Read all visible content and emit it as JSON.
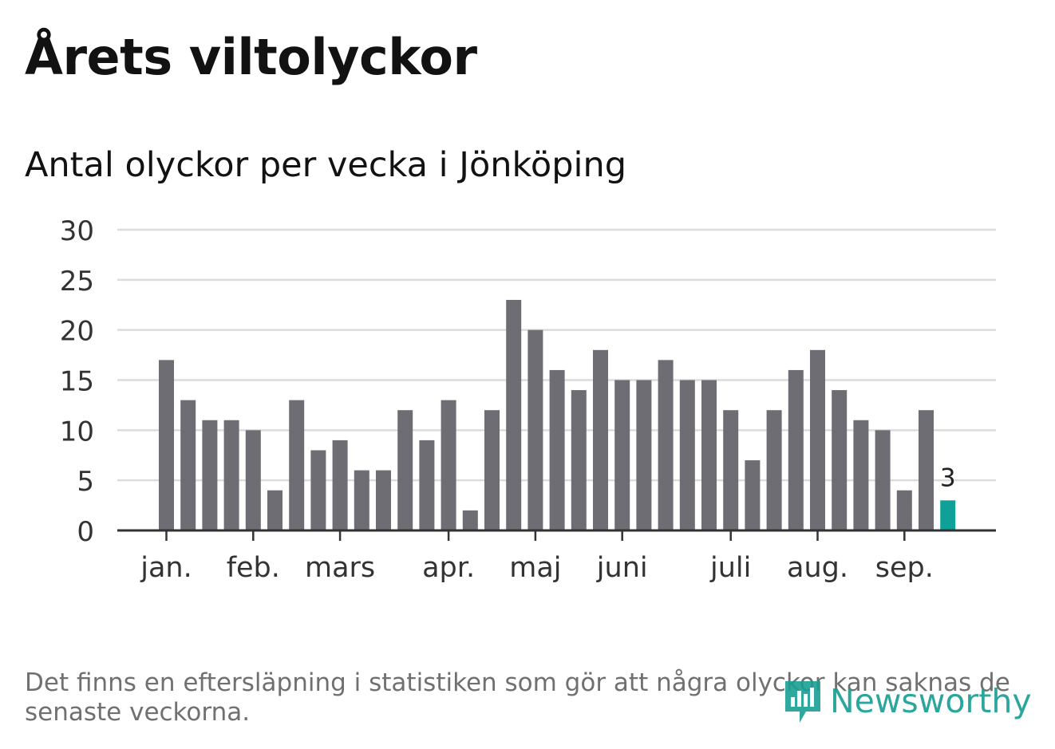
{
  "header": {
    "title": "Årets viltolyckor",
    "subtitle": "Antal olyckor per vecka i Jönköping"
  },
  "footer": {
    "note": "Det finns en eftersläpning i statistiken som gör att några olyckor kan saknas de senaste veckorna.",
    "logo_text": "Newsworthy"
  },
  "colors": {
    "bar": "#6e6d73",
    "highlight": "#0fa197",
    "grid": "#dcdcdc",
    "axis": "#333333",
    "text": "#333333"
  },
  "chart_data": {
    "type": "bar",
    "values": [
      17,
      13,
      11,
      11,
      10,
      4,
      13,
      8,
      9,
      6,
      6,
      12,
      9,
      13,
      2,
      12,
      23,
      20,
      16,
      14,
      18,
      15,
      15,
      17,
      15,
      15,
      12,
      7,
      12,
      16,
      18,
      14,
      11,
      10,
      4,
      12,
      3
    ],
    "ylim": [
      0,
      30
    ],
    "yticks": [
      "0",
      "5",
      "10",
      "15",
      "20",
      "25",
      "30"
    ],
    "month_labels": [
      {
        "label": "jan.",
        "x": 0.5
      },
      {
        "label": "feb.",
        "x": 4.5
      },
      {
        "label": "mars",
        "x": 8.5
      },
      {
        "label": "apr.",
        "x": 13.5
      },
      {
        "label": "maj",
        "x": 17.5
      },
      {
        "label": "juni",
        "x": 21.5
      },
      {
        "label": "juli",
        "x": 26.5
      },
      {
        "label": "aug.",
        "x": 30.5
      },
      {
        "label": "sep.",
        "x": 34.5
      }
    ],
    "highlight_index": 36,
    "highlight_label": "3",
    "grid": true,
    "xlabel": "",
    "ylabel": ""
  }
}
